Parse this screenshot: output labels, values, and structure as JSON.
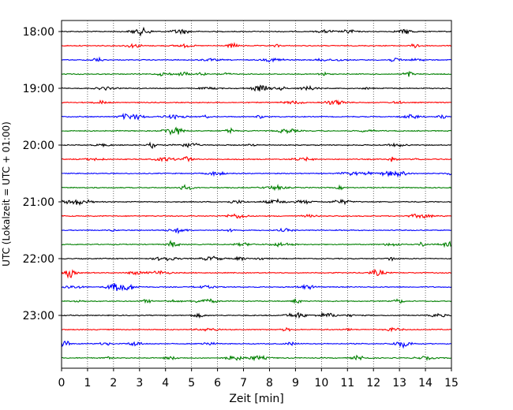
{
  "chart_data": {
    "type": "line",
    "title": "",
    "xlabel": "Zeit  [min]",
    "ylabel": "UTC (Lokalzeit = UTC + 01:00)",
    "xlim": [
      0,
      15
    ],
    "x_ticks": [
      "0",
      "1",
      "2",
      "3",
      "4",
      "5",
      "6",
      "7",
      "8",
      "9",
      "10",
      "11",
      "12",
      "13",
      "14",
      "15"
    ],
    "y_ticks": [
      "18:00",
      "19:00",
      "20:00",
      "21:00",
      "22:00",
      "23:00"
    ],
    "grid": "vertical dotted at each minute",
    "trace_colors": [
      "#000000",
      "#ff0000",
      "#0000ff",
      "#008000"
    ],
    "traces": [
      {
        "start": "18:00"
      },
      {
        "start": "18:15"
      },
      {
        "start": "18:30"
      },
      {
        "start": "18:45"
      },
      {
        "start": "19:00"
      },
      {
        "start": "19:15"
      },
      {
        "start": "19:30"
      },
      {
        "start": "19:45"
      },
      {
        "start": "20:00"
      },
      {
        "start": "20:15"
      },
      {
        "start": "20:30"
      },
      {
        "start": "20:45"
      },
      {
        "start": "21:00"
      },
      {
        "start": "21:15"
      },
      {
        "start": "21:30"
      },
      {
        "start": "21:45"
      },
      {
        "start": "22:00"
      },
      {
        "start": "22:15"
      },
      {
        "start": "22:30"
      },
      {
        "start": "22:45"
      },
      {
        "start": "23:00"
      },
      {
        "start": "23:15"
      },
      {
        "start": "23:30"
      },
      {
        "start": "23:45"
      }
    ]
  }
}
